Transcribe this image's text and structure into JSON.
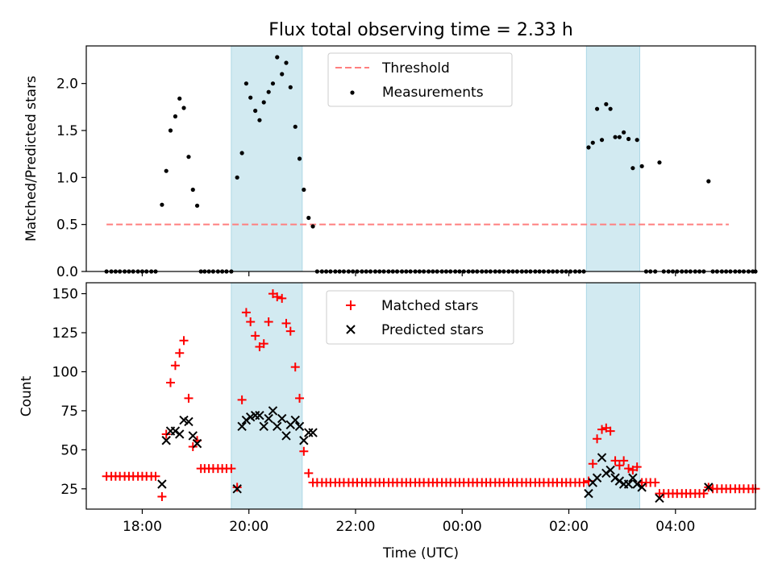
{
  "chart_data": {
    "type": "scatter",
    "title": "Flux total observing time = 2.33 h",
    "xlabel": "Time (UTC)",
    "x_ticks": [
      "18:00",
      "20:00",
      "22:00",
      "00:00",
      "02:00",
      "04:00"
    ],
    "x_tick_hours": [
      18,
      20,
      22,
      24,
      26,
      28
    ],
    "xlim": [
      16.95,
      29.5
    ],
    "shaded_windows": [
      [
        19.67,
        21.0
      ],
      [
        26.33,
        27.33
      ]
    ],
    "colors": {
      "shade": "#add8e6",
      "threshold": "#ff7f7f",
      "matched": "#ff0000",
      "predicted": "#000000",
      "measurement": "#000000"
    },
    "top": {
      "ylabel": "Matched/Predicted stars",
      "ylim": [
        0,
        2.4
      ],
      "yticks": [
        "0.0",
        "0.5",
        "1.0",
        "1.5",
        "2.0"
      ],
      "ytick_values": [
        0,
        0.5,
        1.0,
        1.5,
        2.0
      ],
      "threshold": {
        "name": "Threshold",
        "value": 0.5,
        "x_start": 17.33,
        "x_end": 29.0
      },
      "measurements_name": "Measurements",
      "measurements": [
        [
          17.33,
          0
        ],
        [
          17.42,
          0
        ],
        [
          17.5,
          0
        ],
        [
          17.58,
          0
        ],
        [
          17.67,
          0
        ],
        [
          17.75,
          0
        ],
        [
          17.83,
          0
        ],
        [
          17.92,
          0
        ],
        [
          18.0,
          0
        ],
        [
          18.08,
          0
        ],
        [
          18.17,
          0
        ],
        [
          18.25,
          0
        ],
        [
          18.37,
          0.71
        ],
        [
          18.45,
          1.07
        ],
        [
          18.53,
          1.5
        ],
        [
          18.62,
          1.65
        ],
        [
          18.7,
          1.84
        ],
        [
          18.78,
          1.74
        ],
        [
          18.87,
          1.22
        ],
        [
          18.95,
          0.87
        ],
        [
          19.03,
          0.7
        ],
        [
          19.1,
          0
        ],
        [
          19.17,
          0
        ],
        [
          19.25,
          0
        ],
        [
          19.33,
          0
        ],
        [
          19.42,
          0
        ],
        [
          19.5,
          0
        ],
        [
          19.58,
          0
        ],
        [
          19.67,
          0
        ],
        [
          19.78,
          1.0
        ],
        [
          19.87,
          1.26
        ],
        [
          19.95,
          2.0
        ],
        [
          20.03,
          1.85
        ],
        [
          20.12,
          1.71
        ],
        [
          20.2,
          1.61
        ],
        [
          20.28,
          1.8
        ],
        [
          20.37,
          1.91
        ],
        [
          20.45,
          2.0
        ],
        [
          20.53,
          2.28
        ],
        [
          20.62,
          2.1
        ],
        [
          20.7,
          2.22
        ],
        [
          20.78,
          1.96
        ],
        [
          20.87,
          1.54
        ],
        [
          20.95,
          1.2
        ],
        [
          21.03,
          0.87
        ],
        [
          21.12,
          0.57
        ],
        [
          21.2,
          0.48
        ],
        [
          21.28,
          0
        ],
        [
          21.37,
          0
        ],
        [
          21.45,
          0
        ],
        [
          21.53,
          0
        ],
        [
          21.62,
          0
        ],
        [
          21.7,
          0
        ],
        [
          21.78,
          0
        ],
        [
          21.87,
          0
        ],
        [
          21.95,
          0
        ],
        [
          22.03,
          0
        ],
        [
          22.12,
          0
        ],
        [
          22.2,
          0
        ],
        [
          22.28,
          0
        ],
        [
          22.37,
          0
        ],
        [
          22.45,
          0
        ],
        [
          22.53,
          0
        ],
        [
          22.62,
          0
        ],
        [
          22.7,
          0
        ],
        [
          22.78,
          0
        ],
        [
          22.87,
          0
        ],
        [
          22.95,
          0
        ],
        [
          23.03,
          0
        ],
        [
          23.12,
          0
        ],
        [
          23.2,
          0
        ],
        [
          23.28,
          0
        ],
        [
          23.37,
          0
        ],
        [
          23.45,
          0
        ],
        [
          23.53,
          0
        ],
        [
          23.62,
          0
        ],
        [
          23.7,
          0
        ],
        [
          23.78,
          0
        ],
        [
          23.87,
          0
        ],
        [
          23.95,
          0
        ],
        [
          24.03,
          0
        ],
        [
          24.12,
          0
        ],
        [
          24.2,
          0
        ],
        [
          24.28,
          0
        ],
        [
          24.37,
          0
        ],
        [
          24.45,
          0
        ],
        [
          24.53,
          0
        ],
        [
          24.62,
          0
        ],
        [
          24.7,
          0
        ],
        [
          24.78,
          0
        ],
        [
          24.87,
          0
        ],
        [
          24.95,
          0
        ],
        [
          25.03,
          0
        ],
        [
          25.12,
          0
        ],
        [
          25.2,
          0
        ],
        [
          25.28,
          0
        ],
        [
          25.37,
          0
        ],
        [
          25.45,
          0
        ],
        [
          25.53,
          0
        ],
        [
          25.62,
          0
        ],
        [
          25.7,
          0
        ],
        [
          25.78,
          0
        ],
        [
          25.87,
          0
        ],
        [
          25.95,
          0
        ],
        [
          26.03,
          0
        ],
        [
          26.12,
          0
        ],
        [
          26.2,
          0
        ],
        [
          26.28,
          0
        ],
        [
          26.37,
          1.32
        ],
        [
          26.45,
          1.37
        ],
        [
          26.53,
          1.73
        ],
        [
          26.62,
          1.4
        ],
        [
          26.7,
          1.78
        ],
        [
          26.78,
          1.73
        ],
        [
          26.87,
          1.43
        ],
        [
          26.95,
          1.43
        ],
        [
          27.03,
          1.48
        ],
        [
          27.12,
          1.41
        ],
        [
          27.2,
          1.1
        ],
        [
          27.28,
          1.4
        ],
        [
          27.37,
          1.12
        ],
        [
          27.45,
          0
        ],
        [
          27.53,
          0
        ],
        [
          27.62,
          0
        ],
        [
          27.7,
          1.16
        ],
        [
          27.78,
          0
        ],
        [
          27.87,
          0
        ],
        [
          27.95,
          0
        ],
        [
          28.03,
          0
        ],
        [
          28.12,
          0
        ],
        [
          28.2,
          0
        ],
        [
          28.28,
          0
        ],
        [
          28.37,
          0
        ],
        [
          28.45,
          0
        ],
        [
          28.53,
          0
        ],
        [
          28.62,
          0.96
        ],
        [
          28.7,
          0
        ],
        [
          28.78,
          0
        ],
        [
          28.87,
          0
        ],
        [
          28.95,
          0
        ],
        [
          29.03,
          0
        ],
        [
          29.12,
          0
        ],
        [
          29.2,
          0
        ],
        [
          29.28,
          0
        ],
        [
          29.37,
          0
        ],
        [
          29.45,
          0
        ],
        [
          29.5,
          0
        ]
      ]
    },
    "bottom": {
      "ylabel": "Count",
      "ylim": [
        12,
        157
      ],
      "yticks": [
        "25",
        "50",
        "75",
        "100",
        "125",
        "150"
      ],
      "ytick_values": [
        25,
        50,
        75,
        100,
        125,
        150
      ],
      "matched_name": "Matched stars",
      "predicted_name": "Predicted stars",
      "matched": [
        [
          17.33,
          33
        ],
        [
          17.42,
          33
        ],
        [
          17.5,
          33
        ],
        [
          17.58,
          33
        ],
        [
          17.67,
          33
        ],
        [
          17.75,
          33
        ],
        [
          17.83,
          33
        ],
        [
          17.92,
          33
        ],
        [
          18.0,
          33
        ],
        [
          18.08,
          33
        ],
        [
          18.17,
          33
        ],
        [
          18.25,
          33
        ],
        [
          18.37,
          20
        ],
        [
          18.45,
          60
        ],
        [
          18.53,
          93
        ],
        [
          18.62,
          104
        ],
        [
          18.7,
          112
        ],
        [
          18.78,
          120
        ],
        [
          18.87,
          83
        ],
        [
          18.95,
          52
        ],
        [
          19.03,
          56
        ],
        [
          19.1,
          38
        ],
        [
          19.17,
          38
        ],
        [
          19.25,
          38
        ],
        [
          19.33,
          38
        ],
        [
          19.42,
          38
        ],
        [
          19.5,
          38
        ],
        [
          19.58,
          38
        ],
        [
          19.67,
          38
        ],
        [
          19.78,
          26
        ],
        [
          19.87,
          82
        ],
        [
          19.95,
          138
        ],
        [
          20.03,
          132
        ],
        [
          20.12,
          123
        ],
        [
          20.2,
          116
        ],
        [
          20.28,
          118
        ],
        [
          20.37,
          132
        ],
        [
          20.45,
          150
        ],
        [
          20.53,
          148
        ],
        [
          20.62,
          147
        ],
        [
          20.7,
          131
        ],
        [
          20.78,
          126
        ],
        [
          20.87,
          103
        ],
        [
          20.95,
          83
        ],
        [
          21.03,
          49
        ],
        [
          21.12,
          35
        ],
        [
          21.2,
          29
        ],
        [
          21.28,
          29
        ],
        [
          21.37,
          29
        ],
        [
          21.45,
          29
        ],
        [
          21.53,
          29
        ],
        [
          21.62,
          29
        ],
        [
          21.7,
          29
        ],
        [
          21.78,
          29
        ],
        [
          21.87,
          29
        ],
        [
          21.95,
          29
        ],
        [
          22.03,
          29
        ],
        [
          22.12,
          29
        ],
        [
          22.2,
          29
        ],
        [
          22.28,
          29
        ],
        [
          22.37,
          29
        ],
        [
          22.45,
          29
        ],
        [
          22.53,
          29
        ],
        [
          22.62,
          29
        ],
        [
          22.7,
          29
        ],
        [
          22.78,
          29
        ],
        [
          22.87,
          29
        ],
        [
          22.95,
          29
        ],
        [
          23.03,
          29
        ],
        [
          23.12,
          29
        ],
        [
          23.2,
          29
        ],
        [
          23.28,
          29
        ],
        [
          23.37,
          29
        ],
        [
          23.45,
          29
        ],
        [
          23.53,
          29
        ],
        [
          23.62,
          29
        ],
        [
          23.7,
          29
        ],
        [
          23.78,
          29
        ],
        [
          23.87,
          29
        ],
        [
          23.95,
          29
        ],
        [
          24.03,
          29
        ],
        [
          24.12,
          29
        ],
        [
          24.2,
          29
        ],
        [
          24.28,
          29
        ],
        [
          24.37,
          29
        ],
        [
          24.45,
          29
        ],
        [
          24.53,
          29
        ],
        [
          24.62,
          29
        ],
        [
          24.7,
          29
        ],
        [
          24.78,
          29
        ],
        [
          24.87,
          29
        ],
        [
          24.95,
          29
        ],
        [
          25.03,
          29
        ],
        [
          25.12,
          29
        ],
        [
          25.2,
          29
        ],
        [
          25.28,
          29
        ],
        [
          25.37,
          29
        ],
        [
          25.45,
          29
        ],
        [
          25.53,
          29
        ],
        [
          25.62,
          29
        ],
        [
          25.7,
          29
        ],
        [
          25.78,
          29
        ],
        [
          25.87,
          29
        ],
        [
          25.95,
          29
        ],
        [
          26.03,
          29
        ],
        [
          26.12,
          29
        ],
        [
          26.2,
          29
        ],
        [
          26.28,
          29
        ],
        [
          26.37,
          30
        ],
        [
          26.45,
          41
        ],
        [
          26.53,
          57
        ],
        [
          26.62,
          63
        ],
        [
          26.7,
          64
        ],
        [
          26.78,
          62
        ],
        [
          26.87,
          43
        ],
        [
          26.95,
          40
        ],
        [
          27.03,
          43
        ],
        [
          27.12,
          38
        ],
        [
          27.2,
          37
        ],
        [
          27.28,
          39
        ],
        [
          27.37,
          29
        ],
        [
          27.45,
          29
        ],
        [
          27.53,
          29
        ],
        [
          27.62,
          29
        ],
        [
          27.7,
          22
        ],
        [
          27.78,
          22
        ],
        [
          27.87,
          22
        ],
        [
          27.95,
          22
        ],
        [
          28.03,
          22
        ],
        [
          28.12,
          22
        ],
        [
          28.2,
          22
        ],
        [
          28.28,
          22
        ],
        [
          28.37,
          22
        ],
        [
          28.45,
          22
        ],
        [
          28.53,
          22
        ],
        [
          28.62,
          26
        ],
        [
          28.7,
          25
        ],
        [
          28.78,
          25
        ],
        [
          28.87,
          25
        ],
        [
          28.95,
          25
        ],
        [
          29.03,
          25
        ],
        [
          29.12,
          25
        ],
        [
          29.2,
          25
        ],
        [
          29.28,
          25
        ],
        [
          29.37,
          25
        ],
        [
          29.45,
          25
        ],
        [
          29.5,
          25
        ]
      ],
      "predicted": [
        [
          18.37,
          28
        ],
        [
          18.45,
          56
        ],
        [
          18.53,
          62
        ],
        [
          18.62,
          62
        ],
        [
          18.7,
          60
        ],
        [
          18.78,
          69
        ],
        [
          18.87,
          68
        ],
        [
          18.95,
          59
        ],
        [
          19.03,
          54
        ],
        [
          19.78,
          25
        ],
        [
          19.87,
          65
        ],
        [
          19.95,
          69
        ],
        [
          20.03,
          71
        ],
        [
          20.12,
          72
        ],
        [
          20.2,
          72
        ],
        [
          20.28,
          65
        ],
        [
          20.37,
          70
        ],
        [
          20.45,
          75
        ],
        [
          20.53,
          65
        ],
        [
          20.62,
          70
        ],
        [
          20.7,
          59
        ],
        [
          20.78,
          66
        ],
        [
          20.87,
          69
        ],
        [
          20.95,
          65
        ],
        [
          21.03,
          56
        ],
        [
          21.12,
          61
        ],
        [
          21.2,
          61
        ],
        [
          26.37,
          22
        ],
        [
          26.45,
          29
        ],
        [
          26.53,
          32
        ],
        [
          26.62,
          45
        ],
        [
          26.7,
          35
        ],
        [
          26.78,
          37
        ],
        [
          26.87,
          32
        ],
        [
          26.95,
          30
        ],
        [
          27.03,
          28
        ],
        [
          27.12,
          28
        ],
        [
          27.2,
          32
        ],
        [
          27.28,
          28
        ],
        [
          27.37,
          26
        ],
        [
          27.7,
          19
        ],
        [
          28.62,
          26
        ]
      ]
    }
  }
}
